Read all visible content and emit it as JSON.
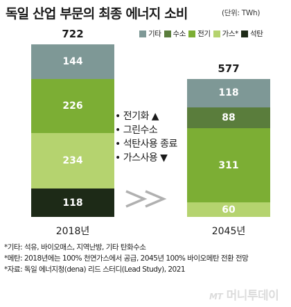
{
  "chart_data": {
    "type": "bar",
    "stacked": true,
    "title": "독일 산업 부문의 최종 에너지 소비",
    "unit": "(단위: TWh)",
    "categories": [
      "2018년",
      "2045년"
    ],
    "totals": [
      722,
      577
    ],
    "series": [
      {
        "name": "석탄",
        "color": "#1d2a17",
        "values": [
          118,
          0
        ]
      },
      {
        "name": "가스*",
        "color": "#b5d36f",
        "values": [
          234,
          60
        ]
      },
      {
        "name": "전기",
        "color": "#7cae34",
        "values": [
          226,
          311
        ]
      },
      {
        "name": "수소",
        "color": "#5a7d3c",
        "values": [
          0,
          88
        ]
      },
      {
        "name": "기타",
        "color": "#7e9896",
        "values": [
          144,
          118
        ]
      }
    ],
    "legend_order": [
      "기타",
      "수소",
      "전기",
      "가스*",
      "석탄"
    ],
    "legend_placement": "top-right"
  },
  "callout": {
    "lines": [
      "• 전기화 ▲",
      "• 그린수소",
      "• 석탄사용 종료",
      "• 가스사용 ▼"
    ]
  },
  "footnotes": [
    "*기타: 석유, 바이오매스, 지역난방, 기타 탄화수소",
    "*메탄: 2018년에는 100% 천연가스에서 공급, 2045년 100% 바이오메탄 전환 전망",
    "*자료: 독일 에너지청(dena) 리드 스터디(Lead Study), 2021"
  ],
  "watermark": {
    "prefix": "MT",
    "text": "머니투데이"
  },
  "colors": {
    "arrow": "#b0b0b0"
  }
}
